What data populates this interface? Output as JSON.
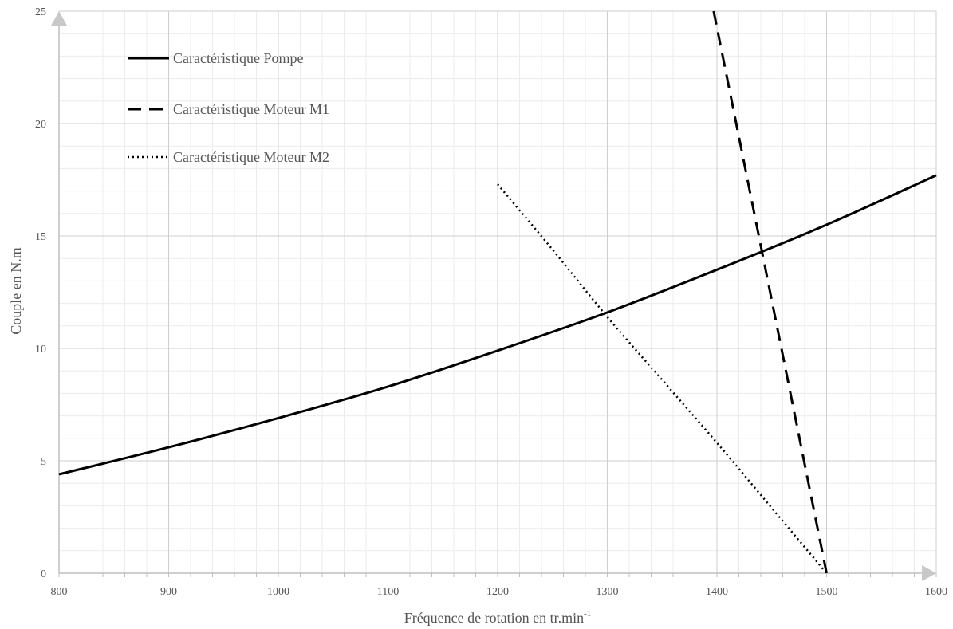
{
  "chart_data": {
    "type": "line",
    "title": "",
    "xlabel": "Fréquence de rotation  en tr.min",
    "xlabel_superscript": "-1",
    "ylabel": "Couple en N.m",
    "xlim": [
      800,
      1600
    ],
    "ylim": [
      0,
      25
    ],
    "x_ticks": [
      "800",
      "900",
      "1000",
      "1100",
      "1200",
      "1300",
      "1400",
      "1500",
      "1600"
    ],
    "y_ticks": [
      "0",
      "5",
      "10",
      "15",
      "20",
      "25"
    ],
    "grid": true,
    "legend_position": "top-left",
    "series": [
      {
        "name": "Caractéristique  Pompe",
        "style": "solid",
        "x": [
          800,
          900,
          1000,
          1100,
          1200,
          1300,
          1400,
          1500,
          1600
        ],
        "y": [
          4.4,
          5.6,
          6.9,
          8.3,
          9.9,
          11.6,
          13.5,
          15.5,
          17.7
        ]
      },
      {
        "name": "Caractéristique  Moteur M1",
        "style": "dashed",
        "x": [
          1397,
          1500
        ],
        "y": [
          25,
          0
        ]
      },
      {
        "name": "Caractéristique  Moteur M2",
        "style": "dotted",
        "x": [
          1200,
          1250,
          1300,
          1350,
          1400,
          1450,
          1500
        ],
        "y": [
          17.3,
          14.4,
          11.4,
          8.6,
          5.8,
          2.9,
          0
        ]
      }
    ]
  }
}
